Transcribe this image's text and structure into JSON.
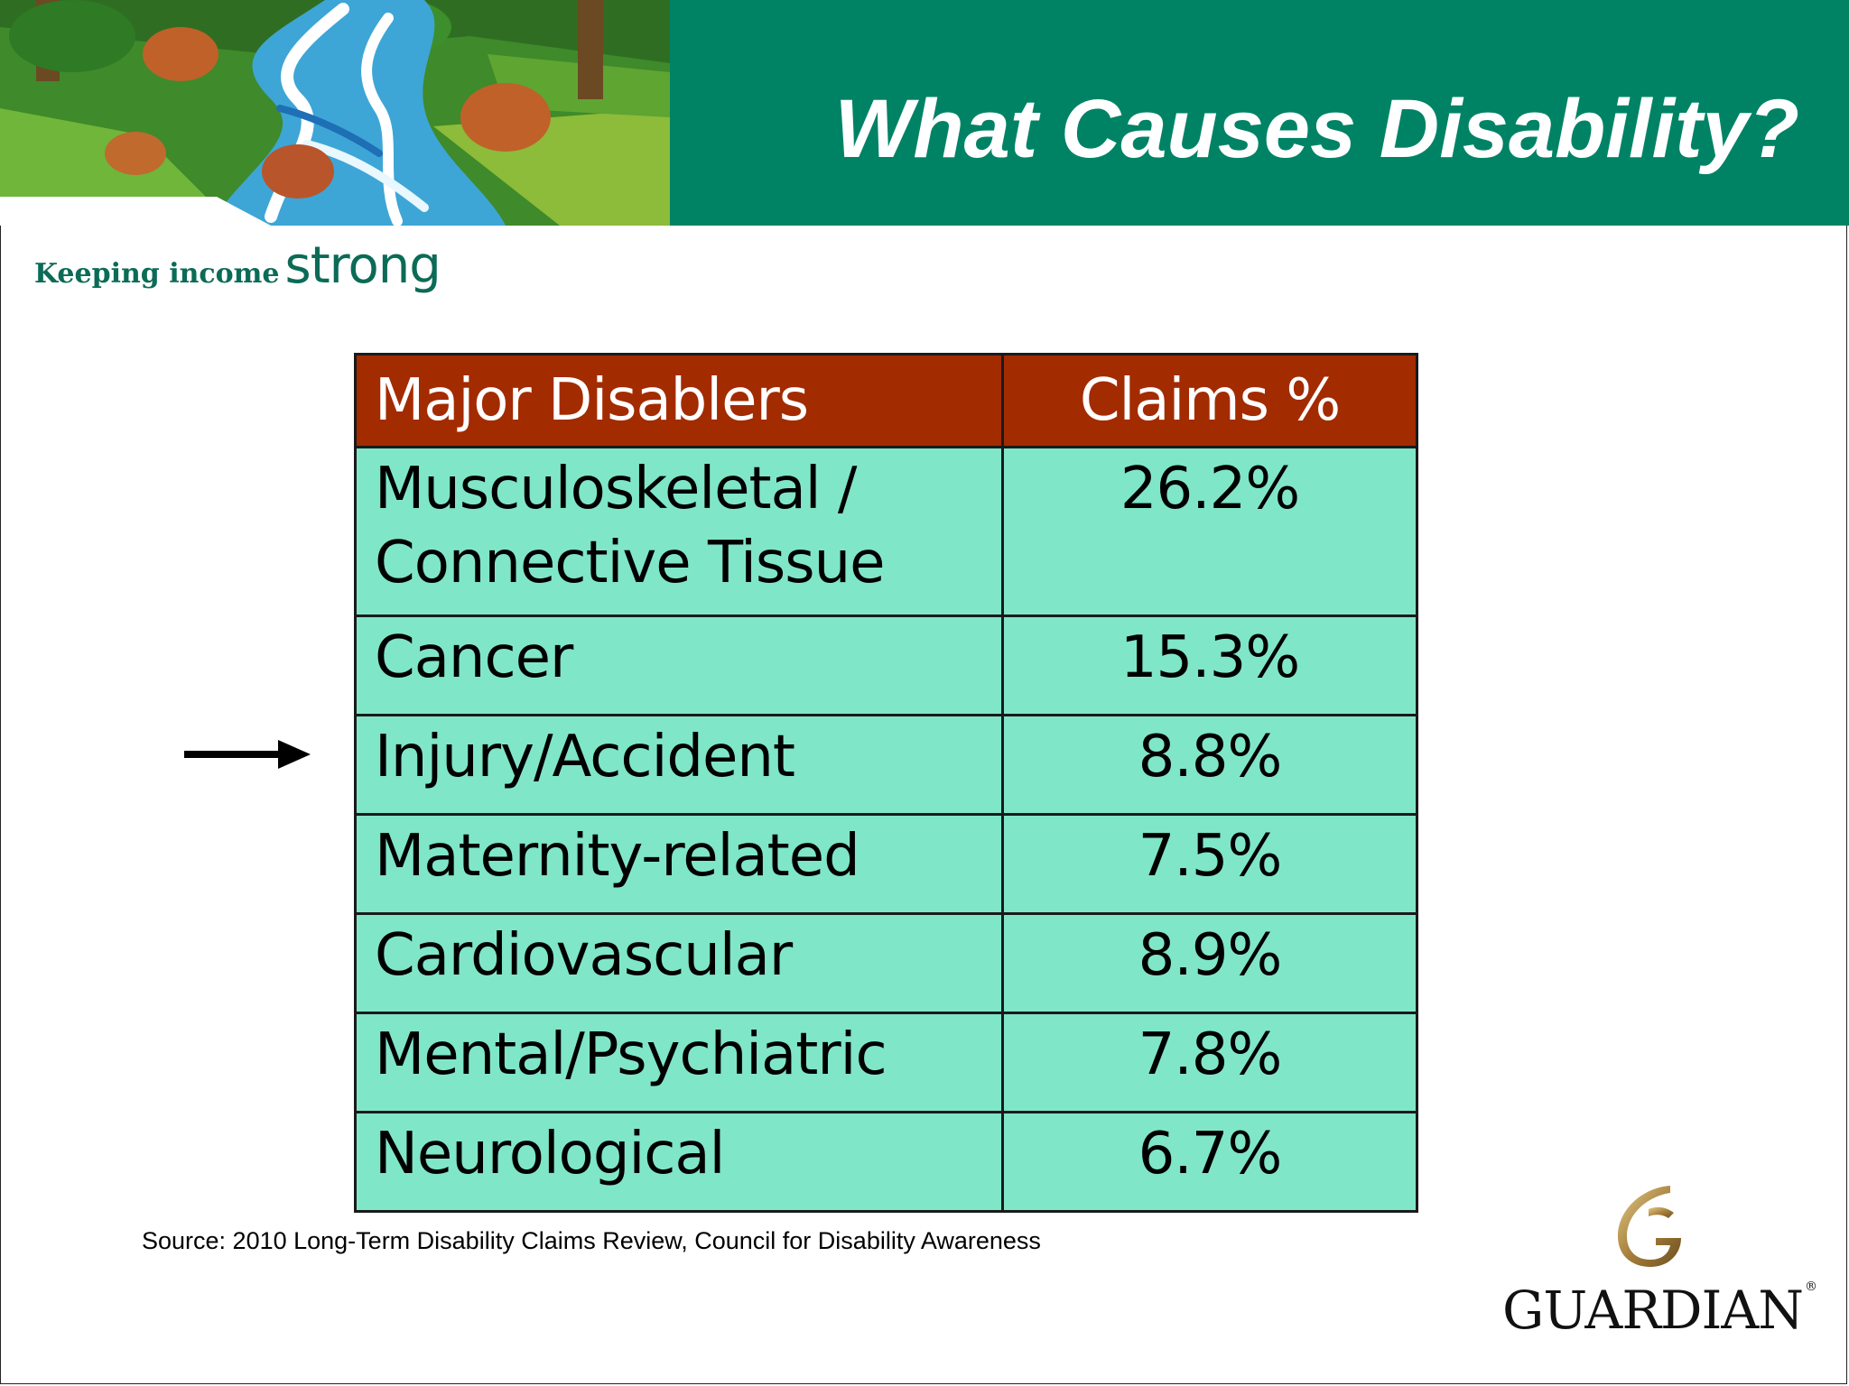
{
  "slide": {
    "title": "What Causes Disability?",
    "tagline_part1": "Keeping income",
    "tagline_part2": "strong"
  },
  "table": {
    "headers": [
      "Major Disablers",
      "Claims %"
    ],
    "rows": [
      {
        "name_line1": "Musculoskeletal /",
        "name_line2": "Connective Tissue",
        "pct": "26.2%"
      },
      {
        "name": "Cancer",
        "pct": "15.3%"
      },
      {
        "name": "Injury/Accident",
        "pct": "8.8%",
        "highlighted": true
      },
      {
        "name": "Maternity-related",
        "pct": "7.5%"
      },
      {
        "name": "Cardiovascular",
        "pct": "8.9%"
      },
      {
        "name": "Mental/Psychiatric",
        "pct": "7.8%"
      },
      {
        "name": "Neurological",
        "pct": "6.7%"
      }
    ]
  },
  "source": "Source: 2010 Long-Term Disability Claims Review, Council for Disability Awareness",
  "logo": {
    "name": "GUARDIAN",
    "mark": "®"
  },
  "colors": {
    "header_band": "#008365",
    "table_header": "#a32b00",
    "table_cells": "#80e6c8",
    "tagline": "#0b6b56"
  }
}
